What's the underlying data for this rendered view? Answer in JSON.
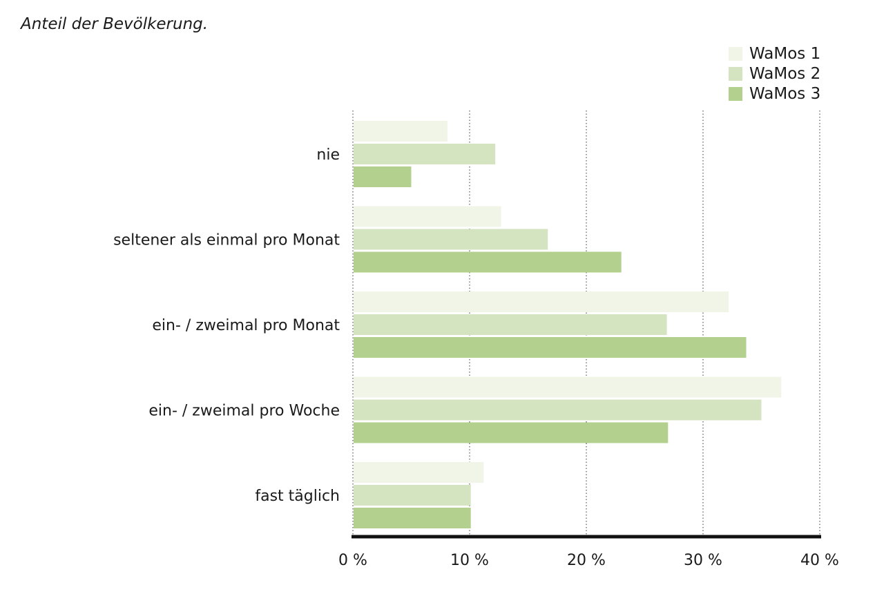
{
  "subtitle": "Anteil der Bevölkerung.",
  "chart_data": {
    "type": "bar",
    "orientation": "horizontal",
    "title": "",
    "subtitle": "Anteil der Bevölkerung.",
    "xlabel": "",
    "ylabel": "",
    "xlim": [
      0,
      40
    ],
    "categories": [
      "nie",
      "seltener als einmal pro Monat",
      "ein- / zweimal pro Monat",
      "ein- / zweimal pro Woche",
      "fast täglich"
    ],
    "tick_values": [
      0,
      10,
      20,
      30,
      40
    ],
    "tick_labels": [
      "0 %",
      "10 %",
      "20 %",
      "30 %",
      "40 %"
    ],
    "grid": "vertical dotted",
    "legend_position": "top-right",
    "series": [
      {
        "name": "WaMos 1",
        "color": "#f0f5e8",
        "values": [
          8.1,
          12.7,
          32.2,
          36.7,
          11.2
        ]
      },
      {
        "name": "WaMos 2",
        "color": "#d4e3c0",
        "values": [
          12.2,
          16.7,
          26.9,
          35.0,
          10.1
        ]
      },
      {
        "name": "WaMos 3",
        "color": "#b3d08f",
        "values": [
          5.0,
          23.0,
          33.7,
          27.0,
          10.1
        ]
      }
    ]
  }
}
